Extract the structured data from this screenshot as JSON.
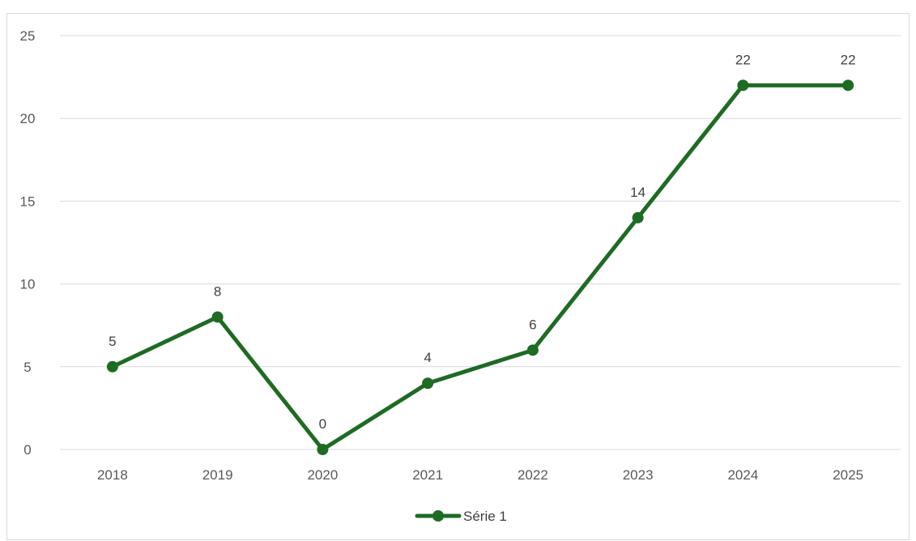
{
  "chart_data": {
    "type": "line",
    "title": "",
    "xlabel": "",
    "ylabel": "",
    "categories": [
      "2018",
      "2019",
      "2020",
      "2021",
      "2022",
      "2023",
      "2024",
      "2025"
    ],
    "series": [
      {
        "name": "Série 1",
        "values": [
          5,
          8,
          0,
          4,
          6,
          14,
          22,
          22
        ],
        "color": "#1e6b24"
      }
    ],
    "ylim": [
      0,
      25
    ],
    "yticks": [
      "0",
      "5",
      "10",
      "15",
      "20",
      "25"
    ],
    "grid": true,
    "gridColor": "#d9d9d9",
    "data_labels": true,
    "legend": "bottom-center"
  }
}
